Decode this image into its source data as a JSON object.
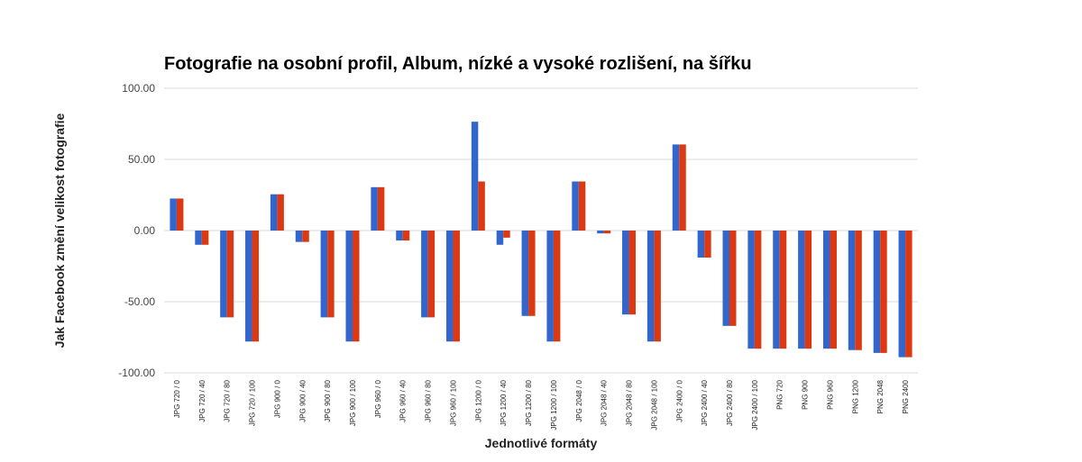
{
  "chart_data": {
    "type": "bar",
    "title": "Fotografie na osobní profil, Album, nízké a vysoké rozlišení, na šířku",
    "xlabel": "Jednotlivé formáty",
    "ylabel": "Jak Facebook změní velikost fotografie",
    "ylim": [
      -100,
      100
    ],
    "yticks": [
      100,
      50,
      0,
      -50,
      -100
    ],
    "ytick_labels": [
      "100.00",
      "50.00",
      "0.00",
      "-50.00",
      "-100.00"
    ],
    "grid": true,
    "legend": "none",
    "categories": [
      "JPG 720 / 0",
      "JPG 720 / 40",
      "JPG 720 / 80",
      "JPG 720 / 100",
      "JPG 900 / 0",
      "JPG 900 / 40",
      "JPG 900 / 80",
      "JPG 900 / 100",
      "JPG 960 / 0",
      "JPG 960 / 40",
      "JPG 960 / 80",
      "JPG 960 / 100",
      "JPG 1200 / 0",
      "JPG 1200 / 40",
      "JPG 1200 / 80",
      "JPG 1200 / 100",
      "JPG 2048 / 0",
      "JPG 2048 / 40",
      "JPG 2048 / 80",
      "JPG 2048 / 100",
      "JPG 2400 / 0",
      "JPG 2400 / 40",
      "JPG 2400 / 80",
      "JPG 2400 / 100",
      "PNG 720",
      "PNG 900",
      "PNG 960",
      "PNG 1200",
      "PNG 2048",
      "PNG 2400"
    ],
    "series": [
      {
        "color": "#3366cc",
        "values": [
          22.5,
          -10,
          -61,
          -78,
          25.5,
          -8,
          -61,
          -78,
          30.5,
          -7,
          -61,
          -78,
          76.5,
          -10,
          -60,
          -78,
          34.5,
          -2,
          -59,
          -78,
          60.5,
          -19,
          -67,
          -83,
          -83,
          -83,
          -83,
          -84,
          -86,
          -89
        ]
      },
      {
        "color": "#dc3912",
        "values": [
          22.5,
          -10,
          -61,
          -78,
          25.5,
          -8,
          -61,
          -78,
          30.5,
          -7,
          -61,
          -78,
          34.5,
          -5,
          -60,
          -78,
          34.5,
          -2,
          -59,
          -78,
          60.5,
          -19,
          -67,
          -83,
          -83,
          -83,
          -83,
          -84,
          -86,
          -89
        ]
      }
    ]
  }
}
